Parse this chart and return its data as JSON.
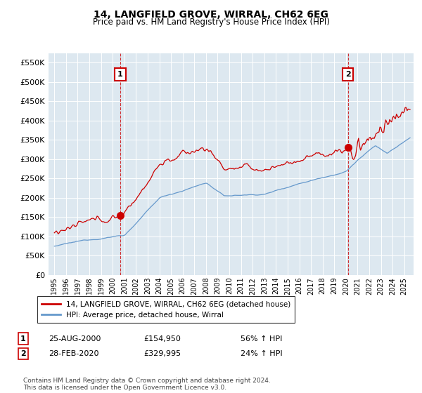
{
  "title": "14, LANGFIELD GROVE, WIRRAL, CH62 6EG",
  "subtitle": "Price paid vs. HM Land Registry's House Price Index (HPI)",
  "ylim": [
    0,
    575000
  ],
  "yticks": [
    0,
    50000,
    100000,
    150000,
    200000,
    250000,
    300000,
    350000,
    400000,
    450000,
    500000,
    550000
  ],
  "legend_line1": "14, LANGFIELD GROVE, WIRRAL, CH62 6EG (detached house)",
  "legend_line2": "HPI: Average price, detached house, Wirral",
  "annotation1_label": "1",
  "annotation1_date": "25-AUG-2000",
  "annotation1_price": "£154,950",
  "annotation1_hpi": "56% ↑ HPI",
  "annotation2_label": "2",
  "annotation2_date": "28-FEB-2020",
  "annotation2_price": "£329,995",
  "annotation2_hpi": "24% ↑ HPI",
  "footer": "Contains HM Land Registry data © Crown copyright and database right 2024.\nThis data is licensed under the Open Government Licence v3.0.",
  "red_line_color": "#cc0000",
  "blue_line_color": "#6699cc",
  "bg_color": "#dde8f0",
  "marker1_x": 2000.646,
  "marker1_y": 154950,
  "marker2_x": 2020.163,
  "marker2_y": 329995,
  "vline1_x": 2000.646,
  "vline2_x": 2020.163,
  "xlim_left": 1994.5,
  "xlim_right": 2025.8
}
